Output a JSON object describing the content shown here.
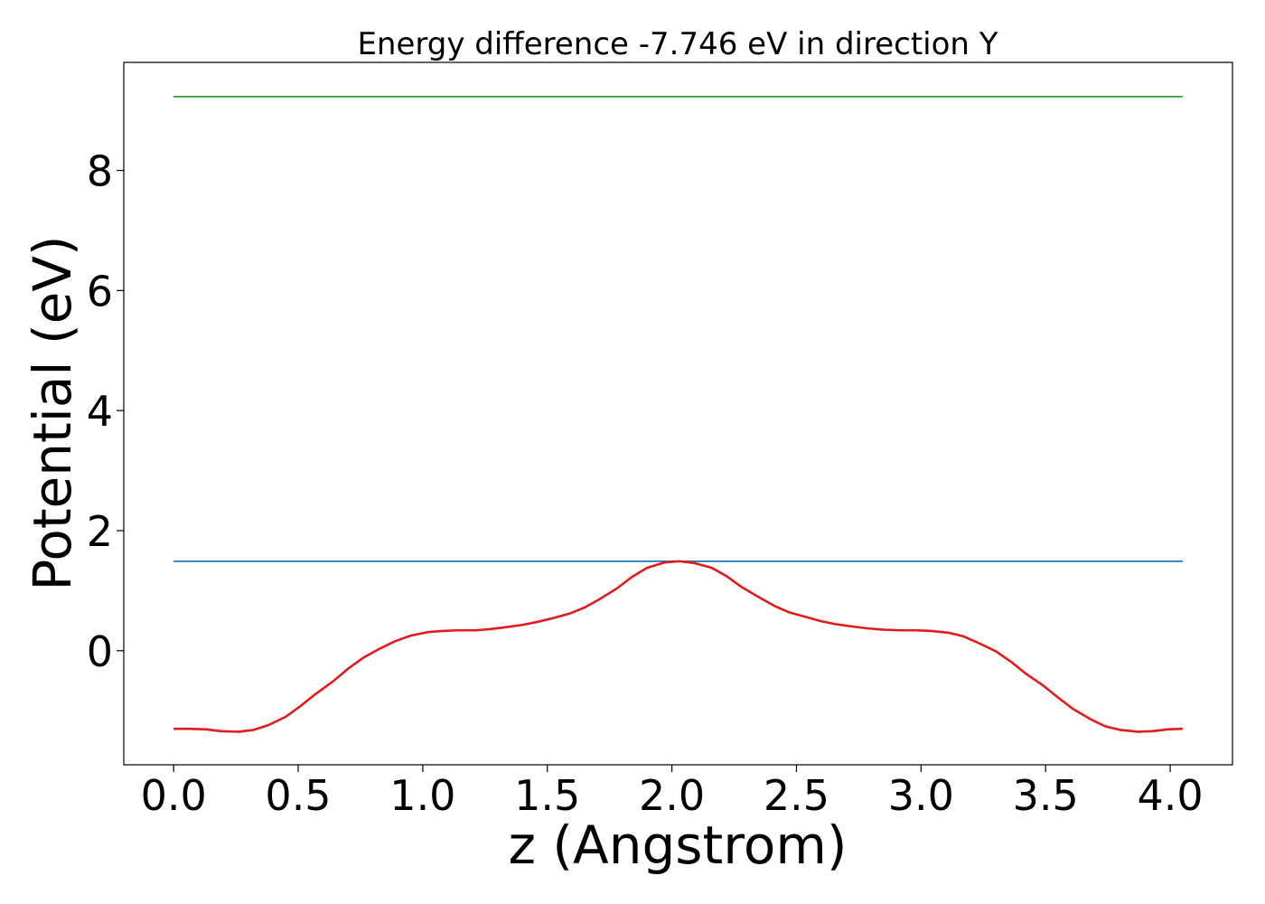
{
  "chart_data": {
    "type": "line",
    "title": "Energy difference -7.746 eV in direction Y",
    "xlabel": "z (Angstrom)",
    "ylabel": "Potential (eV)",
    "xlim": [
      -0.2,
      4.25
    ],
    "ylim": [
      -1.9,
      9.8
    ],
    "x_ticks": [
      0.0,
      0.5,
      1.0,
      1.5,
      2.0,
      2.5,
      3.0,
      3.5,
      4.0
    ],
    "x_tick_labels": [
      "0.0",
      "0.5",
      "1.0",
      "1.5",
      "2.0",
      "2.5",
      "3.0",
      "3.5",
      "4.0"
    ],
    "y_ticks": [
      0,
      2,
      4,
      6,
      8
    ],
    "y_tick_labels": [
      "0",
      "2",
      "4",
      "6",
      "8"
    ],
    "grid": false,
    "series": [
      {
        "color": "#2ca02c",
        "x": [
          0.0,
          4.05
        ],
        "y": [
          9.23,
          9.23
        ]
      },
      {
        "color": "#1f77b4",
        "x": [
          0.0,
          4.05
        ],
        "y": [
          1.49,
          1.49
        ]
      },
      {
        "color": "#e31a1c",
        "x": [
          0.0,
          0.06,
          0.13,
          0.19,
          0.26,
          0.32,
          0.38,
          0.45,
          0.51,
          0.57,
          0.64,
          0.7,
          0.76,
          0.83,
          0.89,
          0.95,
          1.02,
          1.08,
          1.14,
          1.21,
          1.27,
          1.33,
          1.4,
          1.46,
          1.52,
          1.59,
          1.65,
          1.71,
          1.78,
          1.84,
          1.9,
          1.97,
          2.03,
          2.09,
          2.16,
          2.22,
          2.28,
          2.35,
          2.41,
          2.47,
          2.54,
          2.6,
          2.66,
          2.73,
          2.79,
          2.85,
          2.92,
          2.98,
          3.04,
          3.11,
          3.17,
          3.23,
          3.3,
          3.36,
          3.42,
          3.49,
          3.55,
          3.61,
          3.68,
          3.74,
          3.8,
          3.87,
          3.93,
          3.99,
          4.05
        ],
        "y": [
          -1.3,
          -1.3,
          -1.31,
          -1.34,
          -1.35,
          -1.32,
          -1.24,
          -1.1,
          -0.92,
          -0.72,
          -0.51,
          -0.3,
          -0.12,
          0.04,
          0.16,
          0.25,
          0.31,
          0.33,
          0.34,
          0.34,
          0.36,
          0.39,
          0.43,
          0.48,
          0.54,
          0.62,
          0.72,
          0.86,
          1.04,
          1.23,
          1.38,
          1.47,
          1.49,
          1.46,
          1.38,
          1.24,
          1.06,
          0.89,
          0.75,
          0.64,
          0.56,
          0.49,
          0.44,
          0.4,
          0.37,
          0.35,
          0.34,
          0.34,
          0.33,
          0.3,
          0.24,
          0.13,
          -0.01,
          -0.18,
          -0.38,
          -0.58,
          -0.78,
          -0.97,
          -1.14,
          -1.26,
          -1.32,
          -1.35,
          -1.34,
          -1.31,
          -1.3
        ]
      }
    ]
  }
}
